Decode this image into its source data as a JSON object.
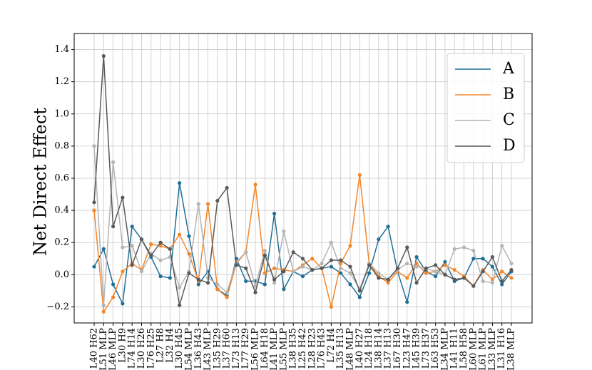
{
  "chart_data": {
    "type": "line",
    "ylabel": "Net Direct Effect",
    "categories": [
      "L40 H62",
      "L51 MLP",
      "L46 MLP",
      "L30 H9",
      "L74 H14",
      "L30 H26",
      "L76 H25",
      "L27 H8",
      "L32 H4",
      "L30 H45",
      "L54 MLP",
      "L36 H43",
      "L43 MLP",
      "L35 H29",
      "L37 H60",
      "L73 H13",
      "L77 H29",
      "L56 MLP",
      "L64 H18",
      "L41 MLP",
      "L55 MLP",
      "L38 H35",
      "L25 H42",
      "L28 H23",
      "L76 H43",
      "L72 H4",
      "L35 H13",
      "L48 MLP",
      "L40 H27",
      "L24 H18",
      "L38 H14",
      "L37 H13",
      "L67 H30",
      "L23 H47",
      "L45 H39",
      "L73 H37",
      "L63 H53",
      "L34 MLP",
      "L41 H11",
      "L58 H58",
      "L60 MLP",
      "L61 MLP",
      "L33 MLP",
      "L31 H16",
      "L38 MLP"
    ],
    "series": [
      {
        "name": "A",
        "color": "#1f6f97",
        "values": [
          0.05,
          0.16,
          -0.06,
          -0.18,
          0.3,
          0.22,
          0.11,
          -0.01,
          -0.02,
          0.57,
          0.24,
          -0.06,
          0.02,
          -0.09,
          -0.13,
          0.1,
          -0.04,
          -0.04,
          -0.06,
          0.38,
          -0.09,
          0.02,
          -0.01,
          0.03,
          0.04,
          0.05,
          0.01,
          -0.06,
          -0.14,
          0.01,
          0.22,
          0.3,
          0.02,
          -0.17,
          0.11,
          0.02,
          -0.01,
          0.08,
          -0.04,
          -0.02,
          0.1,
          0.1,
          0.05,
          -0.06,
          0.02
        ]
      },
      {
        "name": "B",
        "color": "#f4862a",
        "values": [
          0.4,
          -0.23,
          -0.14,
          0.02,
          0.07,
          0.03,
          0.19,
          0.18,
          0.16,
          0.25,
          0.13,
          -0.04,
          0.44,
          -0.09,
          -0.14,
          0.07,
          0.14,
          0.56,
          0.01,
          0.04,
          0.03,
          0.02,
          0.06,
          0.1,
          0.04,
          -0.2,
          0.07,
          0.18,
          0.62,
          0.07,
          -0.01,
          -0.05,
          0.02,
          -0.02,
          0.07,
          0.01,
          0.02,
          0.06,
          0.03,
          -0.01,
          -0.07,
          0.03,
          -0.03,
          0.02,
          -0.02
        ]
      },
      {
        "name": "C",
        "color": "#b4b4b4",
        "values": [
          0.8,
          -0.19,
          0.7,
          0.17,
          0.18,
          0.02,
          0.13,
          0.09,
          0.11,
          -0.08,
          0.02,
          0.44,
          -0.02,
          -0.06,
          -0.11,
          0.08,
          0.14,
          -0.07,
          0.15,
          -0.05,
          0.27,
          0.02,
          0.05,
          0.03,
          0.07,
          0.2,
          0.04,
          0.01,
          -0.09,
          0.07,
          0.01,
          -0.03,
          0.03,
          0.07,
          0.05,
          0.04,
          0.02,
          0.0,
          0.16,
          0.17,
          0.15,
          -0.04,
          -0.05,
          0.18,
          0.07
        ]
      },
      {
        "name": "D",
        "color": "#595959",
        "values": [
          0.45,
          1.36,
          0.3,
          0.48,
          0.06,
          0.22,
          0.12,
          0.2,
          0.16,
          -0.19,
          0.01,
          -0.03,
          -0.05,
          0.46,
          0.54,
          0.06,
          0.04,
          -0.11,
          0.12,
          -0.03,
          0.02,
          0.14,
          0.1,
          0.03,
          0.04,
          0.09,
          0.09,
          0.05,
          -0.1,
          0.06,
          -0.02,
          -0.03,
          0.04,
          0.17,
          -0.05,
          0.04,
          0.06,
          0.0,
          -0.03,
          -0.02,
          -0.07,
          0.02,
          0.11,
          -0.04,
          0.03
        ]
      }
    ],
    "ylim": [
      -0.3,
      1.5
    ],
    "yticks": [
      {
        "value": -0.2,
        "label": "−0.2"
      },
      {
        "value": 0,
        "label": "0.0"
      },
      0.2,
      0.4,
      0.6,
      0.8,
      {
        "value": 1,
        "label": "1.0"
      },
      1.2,
      1.4
    ],
    "grid": true,
    "legend": "upper right"
  }
}
